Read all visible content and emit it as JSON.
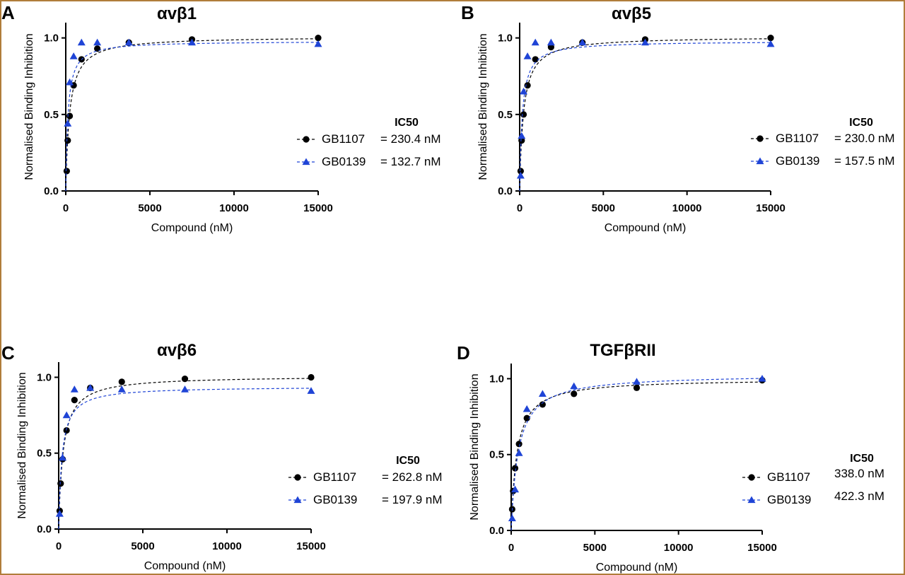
{
  "colors": {
    "series1": "#000000",
    "series2": "#1f44d6",
    "frame": "#b07d3a"
  },
  "chart_data": [
    {
      "type": "scatter",
      "panel_letter": "A",
      "title": "αvβ1",
      "xlabel": "Compound (nM)",
      "ylabel": "Normalised Binding Inhibition",
      "xlim": [
        0,
        15000
      ],
      "ylim": [
        0,
        1.1
      ],
      "xticks": [
        "0",
        "5000",
        "10000",
        "15000"
      ],
      "yticks": [
        "0.0",
        "0.5",
        "1.0"
      ],
      "grid": false,
      "legend_header": "IC50",
      "series": [
        {
          "name": "GB1107",
          "ic50": "= 230.4 nM",
          "marker": "circle",
          "x": [
            58.6,
            117.2,
            234.4,
            468.8,
            937.5,
            1875,
            3750,
            7500,
            15000
          ],
          "y": [
            0.13,
            0.33,
            0.49,
            0.69,
            0.86,
            0.93,
            0.97,
            0.99,
            1.0
          ],
          "fit_ic50": 230.4,
          "fit_max": 1.01
        },
        {
          "name": "GB0139",
          "ic50": "= 132.7 nM",
          "marker": "triangle",
          "x": [
            117.2,
            234.4,
            468.8,
            937.5,
            1875,
            3750,
            7500,
            15000
          ],
          "y": [
            0.44,
            0.71,
            0.88,
            0.97,
            0.97,
            0.97,
            0.97,
            0.96
          ],
          "fit_ic50": 132.7,
          "fit_max": 0.98
        }
      ]
    },
    {
      "type": "scatter",
      "panel_letter": "B",
      "title": "αvβ5",
      "xlabel": "Compound (nM)",
      "ylabel": "Normalised Binding Inhibition",
      "xlim": [
        0,
        15000
      ],
      "ylim": [
        0,
        1.1
      ],
      "xticks": [
        "0",
        "5000",
        "10000",
        "15000"
      ],
      "yticks": [
        "0.0",
        "0.5",
        "1.0"
      ],
      "grid": false,
      "legend_header": "IC50",
      "series": [
        {
          "name": "GB1107",
          "ic50": "= 230.0 nM",
          "marker": "circle",
          "x": [
            58.6,
            117.2,
            234.4,
            468.8,
            937.5,
            1875,
            3750,
            7500,
            15000
          ],
          "y": [
            0.13,
            0.33,
            0.5,
            0.69,
            0.86,
            0.94,
            0.97,
            0.99,
            1.0
          ],
          "fit_ic50": 230.0,
          "fit_max": 1.01
        },
        {
          "name": "GB0139",
          "ic50": "= 157.5 nM",
          "marker": "triangle",
          "x": [
            58.6,
            117.2,
            234.4,
            468.8,
            937.5,
            1875,
            3750,
            7500,
            15000
          ],
          "y": [
            0.1,
            0.36,
            0.65,
            0.88,
            0.97,
            0.97,
            0.97,
            0.97,
            0.96
          ],
          "fit_ic50": 157.5,
          "fit_max": 0.98
        }
      ]
    },
    {
      "type": "scatter",
      "panel_letter": "C",
      "title": "αvβ6",
      "xlabel": "Compound (nM)",
      "ylabel": "Normalised Binding Inhibition",
      "xlim": [
        0,
        15000
      ],
      "ylim": [
        0,
        1.1
      ],
      "xticks": [
        "0",
        "5000",
        "10000",
        "15000"
      ],
      "yticks": [
        "0.0",
        "0.5",
        "1.0"
      ],
      "grid": false,
      "legend_header": "IC50",
      "series": [
        {
          "name": "GB1107",
          "ic50": "= 262.8 nM",
          "marker": "circle",
          "x": [
            58.6,
            117.2,
            234.4,
            468.8,
            937.5,
            1875,
            3750,
            7500,
            15000
          ],
          "y": [
            0.12,
            0.3,
            0.46,
            0.65,
            0.85,
            0.93,
            0.97,
            0.99,
            1.0
          ],
          "fit_ic50": 262.8,
          "fit_max": 1.01
        },
        {
          "name": "GB0139",
          "ic50": "= 197.9 nM",
          "marker": "triangle",
          "x": [
            58.6,
            234.4,
            468.8,
            937.5,
            1875,
            3750,
            7500,
            15000
          ],
          "y": [
            0.1,
            0.47,
            0.75,
            0.92,
            0.93,
            0.92,
            0.92,
            0.91
          ],
          "fit_ic50": 197.9,
          "fit_max": 0.94
        }
      ]
    },
    {
      "type": "scatter",
      "panel_letter": "D",
      "title": "TGFβRII",
      "xlabel": "Compound (nM)",
      "ylabel": "Normalised Binding Inhibition",
      "xlim": [
        0,
        15000
      ],
      "ylim": [
        0,
        1.1
      ],
      "xticks": [
        "0",
        "5000",
        "10000",
        "15000"
      ],
      "yticks": [
        "0.0",
        "0.5",
        "1.0"
      ],
      "grid": false,
      "legend_header": "IC50",
      "series": [
        {
          "name": "GB1107",
          "ic50": "338.0 nM",
          "marker": "circle",
          "x": [
            58.6,
            117.2,
            234.4,
            468.8,
            937.5,
            1875,
            3750,
            7500,
            15000
          ],
          "y": [
            0.14,
            0.26,
            0.41,
            0.57,
            0.74,
            0.83,
            0.9,
            0.94,
            0.99
          ],
          "fit_ic50": 338.0,
          "fit_max": 1.0
        },
        {
          "name": "GB0139",
          "ic50": "422.3 nM",
          "marker": "triangle",
          "x": [
            58.6,
            234.4,
            468.8,
            937.5,
            1875,
            3750,
            7500,
            15000
          ],
          "y": [
            0.08,
            0.27,
            0.51,
            0.8,
            0.9,
            0.95,
            0.98,
            1.0
          ],
          "fit_ic50": 422.3,
          "fit_max": 1.03
        }
      ]
    }
  ]
}
